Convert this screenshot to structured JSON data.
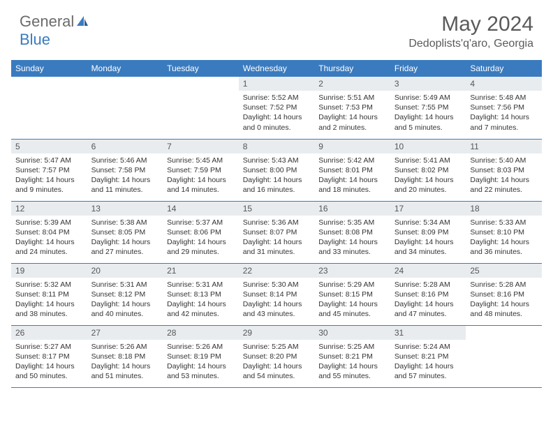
{
  "logo": {
    "part1": "General",
    "part2": "Blue"
  },
  "title": "May 2024",
  "location": "Dedoplists'q'aro, Georgia",
  "colors": {
    "header_bg": "#3a7bbf",
    "daynum_bg": "#e9ecef",
    "rule": "#3a7bbf"
  },
  "weekdays": [
    "Sunday",
    "Monday",
    "Tuesday",
    "Wednesday",
    "Thursday",
    "Friday",
    "Saturday"
  ],
  "weeks": [
    [
      {
        "n": "",
        "sr": "",
        "ss": "",
        "dl": ""
      },
      {
        "n": "",
        "sr": "",
        "ss": "",
        "dl": ""
      },
      {
        "n": "",
        "sr": "",
        "ss": "",
        "dl": ""
      },
      {
        "n": "1",
        "sr": "Sunrise: 5:52 AM",
        "ss": "Sunset: 7:52 PM",
        "dl": "Daylight: 14 hours and 0 minutes."
      },
      {
        "n": "2",
        "sr": "Sunrise: 5:51 AM",
        "ss": "Sunset: 7:53 PM",
        "dl": "Daylight: 14 hours and 2 minutes."
      },
      {
        "n": "3",
        "sr": "Sunrise: 5:49 AM",
        "ss": "Sunset: 7:55 PM",
        "dl": "Daylight: 14 hours and 5 minutes."
      },
      {
        "n": "4",
        "sr": "Sunrise: 5:48 AM",
        "ss": "Sunset: 7:56 PM",
        "dl": "Daylight: 14 hours and 7 minutes."
      }
    ],
    [
      {
        "n": "5",
        "sr": "Sunrise: 5:47 AM",
        "ss": "Sunset: 7:57 PM",
        "dl": "Daylight: 14 hours and 9 minutes."
      },
      {
        "n": "6",
        "sr": "Sunrise: 5:46 AM",
        "ss": "Sunset: 7:58 PM",
        "dl": "Daylight: 14 hours and 11 minutes."
      },
      {
        "n": "7",
        "sr": "Sunrise: 5:45 AM",
        "ss": "Sunset: 7:59 PM",
        "dl": "Daylight: 14 hours and 14 minutes."
      },
      {
        "n": "8",
        "sr": "Sunrise: 5:43 AM",
        "ss": "Sunset: 8:00 PM",
        "dl": "Daylight: 14 hours and 16 minutes."
      },
      {
        "n": "9",
        "sr": "Sunrise: 5:42 AM",
        "ss": "Sunset: 8:01 PM",
        "dl": "Daylight: 14 hours and 18 minutes."
      },
      {
        "n": "10",
        "sr": "Sunrise: 5:41 AM",
        "ss": "Sunset: 8:02 PM",
        "dl": "Daylight: 14 hours and 20 minutes."
      },
      {
        "n": "11",
        "sr": "Sunrise: 5:40 AM",
        "ss": "Sunset: 8:03 PM",
        "dl": "Daylight: 14 hours and 22 minutes."
      }
    ],
    [
      {
        "n": "12",
        "sr": "Sunrise: 5:39 AM",
        "ss": "Sunset: 8:04 PM",
        "dl": "Daylight: 14 hours and 24 minutes."
      },
      {
        "n": "13",
        "sr": "Sunrise: 5:38 AM",
        "ss": "Sunset: 8:05 PM",
        "dl": "Daylight: 14 hours and 27 minutes."
      },
      {
        "n": "14",
        "sr": "Sunrise: 5:37 AM",
        "ss": "Sunset: 8:06 PM",
        "dl": "Daylight: 14 hours and 29 minutes."
      },
      {
        "n": "15",
        "sr": "Sunrise: 5:36 AM",
        "ss": "Sunset: 8:07 PM",
        "dl": "Daylight: 14 hours and 31 minutes."
      },
      {
        "n": "16",
        "sr": "Sunrise: 5:35 AM",
        "ss": "Sunset: 8:08 PM",
        "dl": "Daylight: 14 hours and 33 minutes."
      },
      {
        "n": "17",
        "sr": "Sunrise: 5:34 AM",
        "ss": "Sunset: 8:09 PM",
        "dl": "Daylight: 14 hours and 34 minutes."
      },
      {
        "n": "18",
        "sr": "Sunrise: 5:33 AM",
        "ss": "Sunset: 8:10 PM",
        "dl": "Daylight: 14 hours and 36 minutes."
      }
    ],
    [
      {
        "n": "19",
        "sr": "Sunrise: 5:32 AM",
        "ss": "Sunset: 8:11 PM",
        "dl": "Daylight: 14 hours and 38 minutes."
      },
      {
        "n": "20",
        "sr": "Sunrise: 5:31 AM",
        "ss": "Sunset: 8:12 PM",
        "dl": "Daylight: 14 hours and 40 minutes."
      },
      {
        "n": "21",
        "sr": "Sunrise: 5:31 AM",
        "ss": "Sunset: 8:13 PM",
        "dl": "Daylight: 14 hours and 42 minutes."
      },
      {
        "n": "22",
        "sr": "Sunrise: 5:30 AM",
        "ss": "Sunset: 8:14 PM",
        "dl": "Daylight: 14 hours and 43 minutes."
      },
      {
        "n": "23",
        "sr": "Sunrise: 5:29 AM",
        "ss": "Sunset: 8:15 PM",
        "dl": "Daylight: 14 hours and 45 minutes."
      },
      {
        "n": "24",
        "sr": "Sunrise: 5:28 AM",
        "ss": "Sunset: 8:16 PM",
        "dl": "Daylight: 14 hours and 47 minutes."
      },
      {
        "n": "25",
        "sr": "Sunrise: 5:28 AM",
        "ss": "Sunset: 8:16 PM",
        "dl": "Daylight: 14 hours and 48 minutes."
      }
    ],
    [
      {
        "n": "26",
        "sr": "Sunrise: 5:27 AM",
        "ss": "Sunset: 8:17 PM",
        "dl": "Daylight: 14 hours and 50 minutes."
      },
      {
        "n": "27",
        "sr": "Sunrise: 5:26 AM",
        "ss": "Sunset: 8:18 PM",
        "dl": "Daylight: 14 hours and 51 minutes."
      },
      {
        "n": "28",
        "sr": "Sunrise: 5:26 AM",
        "ss": "Sunset: 8:19 PM",
        "dl": "Daylight: 14 hours and 53 minutes."
      },
      {
        "n": "29",
        "sr": "Sunrise: 5:25 AM",
        "ss": "Sunset: 8:20 PM",
        "dl": "Daylight: 14 hours and 54 minutes."
      },
      {
        "n": "30",
        "sr": "Sunrise: 5:25 AM",
        "ss": "Sunset: 8:21 PM",
        "dl": "Daylight: 14 hours and 55 minutes."
      },
      {
        "n": "31",
        "sr": "Sunrise: 5:24 AM",
        "ss": "Sunset: 8:21 PM",
        "dl": "Daylight: 14 hours and 57 minutes."
      },
      {
        "n": "",
        "sr": "",
        "ss": "",
        "dl": ""
      }
    ]
  ]
}
